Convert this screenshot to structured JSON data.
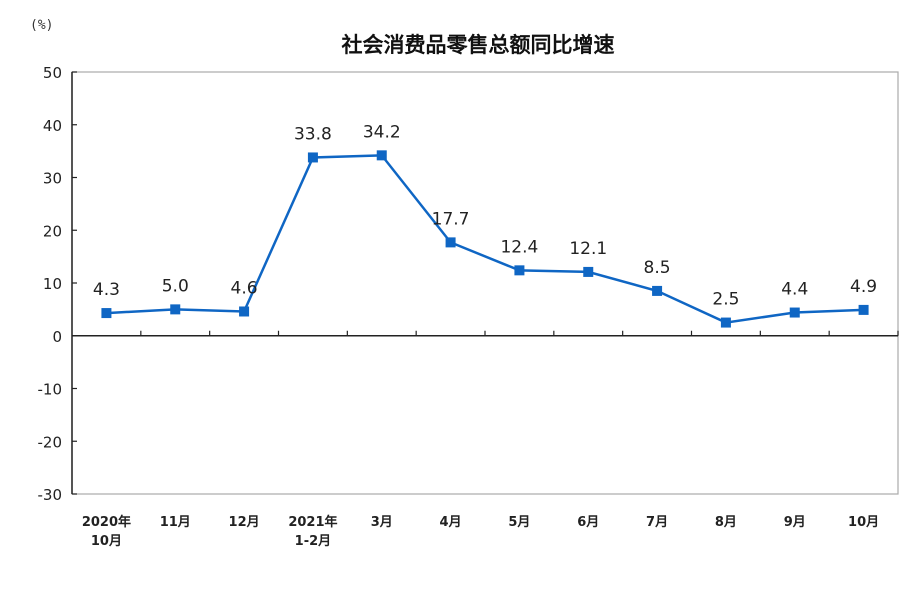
{
  "chart_data": {
    "type": "line",
    "title": "社会消费品零售总额同比增速",
    "ylabel": "(%)",
    "xlabel": "",
    "ylim": [
      -30,
      50
    ],
    "yticks": [
      50,
      40,
      30,
      20,
      10,
      0,
      -10,
      -20,
      -30
    ],
    "grid": false,
    "legend": "none",
    "categories": [
      [
        "2020年",
        "10月"
      ],
      [
        "11月"
      ],
      [
        "12月"
      ],
      [
        "2021年",
        "1-2月"
      ],
      [
        "3月"
      ],
      [
        "4月"
      ],
      [
        "5月"
      ],
      [
        "6月"
      ],
      [
        "7月"
      ],
      [
        "8月"
      ],
      [
        "9月"
      ],
      [
        "10月"
      ]
    ],
    "series": [
      {
        "values": [
          4.3,
          5.0,
          4.6,
          33.8,
          34.2,
          17.7,
          12.4,
          12.1,
          8.5,
          2.5,
          4.4,
          4.9
        ],
        "labels": [
          "4.3",
          "5.0",
          "4.6",
          "33.8",
          "34.2",
          "17.7",
          "12.4",
          "12.1",
          "8.5",
          "2.5",
          "4.4",
          "4.9"
        ],
        "color": "#0F66C4"
      }
    ]
  }
}
